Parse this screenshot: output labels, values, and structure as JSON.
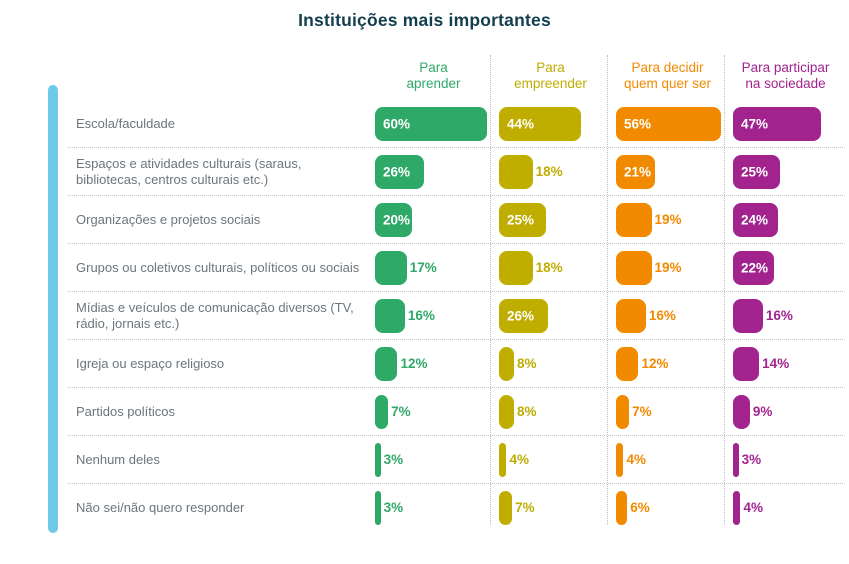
{
  "title": "Instituições mais importantes",
  "colors": {
    "title": "#123e4f",
    "row_label": "#6d757b",
    "accent_left_bar": "#6fc9e8",
    "divider_dotted": "#c6c6c6",
    "bar_inside_label": "#ffffff"
  },
  "chart_data": {
    "type": "bar",
    "orientation": "horizontal",
    "title": "Instituições mais importantes",
    "value_suffix": "%",
    "xlim": [
      0,
      62
    ],
    "label_inside_threshold": 20,
    "legend_position": "column-headers-top",
    "grid": "dotted-row-and-column-dividers",
    "categories": [
      "Escola/faculdade",
      "Espaços e atividades culturais (saraus, bibliotecas, centros culturais etc.)",
      "Organizações e projetos sociais",
      "Grupos ou coletivos culturais, políticos ou sociais",
      "Mídias e veículos de comunicação diversos (TV, rádio, jornais etc.)",
      "Igreja ou espaço religioso",
      "Partidos políticos",
      "Nenhum deles",
      "Não sei/não quero responder"
    ],
    "series": [
      {
        "name": "Para aprender",
        "display_name": "Para\naprender",
        "color": "#2fa968",
        "values": [
          60,
          26,
          20,
          17,
          16,
          12,
          7,
          3,
          3
        ]
      },
      {
        "name": "Para empreender",
        "display_name": "Para\nempreender",
        "color": "#bfad00",
        "values": [
          44,
          18,
          25,
          18,
          26,
          8,
          8,
          4,
          7
        ]
      },
      {
        "name": "Para decidir quem quer ser",
        "display_name": "Para decidir\nquem quer ser",
        "color": "#f18a00",
        "values": [
          56,
          21,
          19,
          19,
          16,
          12,
          7,
          4,
          6
        ]
      },
      {
        "name": "Para participar na sociedade",
        "display_name": "Para participar\nna sociedade",
        "color": "#a2238e",
        "values": [
          47,
          25,
          24,
          22,
          16,
          14,
          9,
          3,
          4
        ]
      }
    ]
  }
}
